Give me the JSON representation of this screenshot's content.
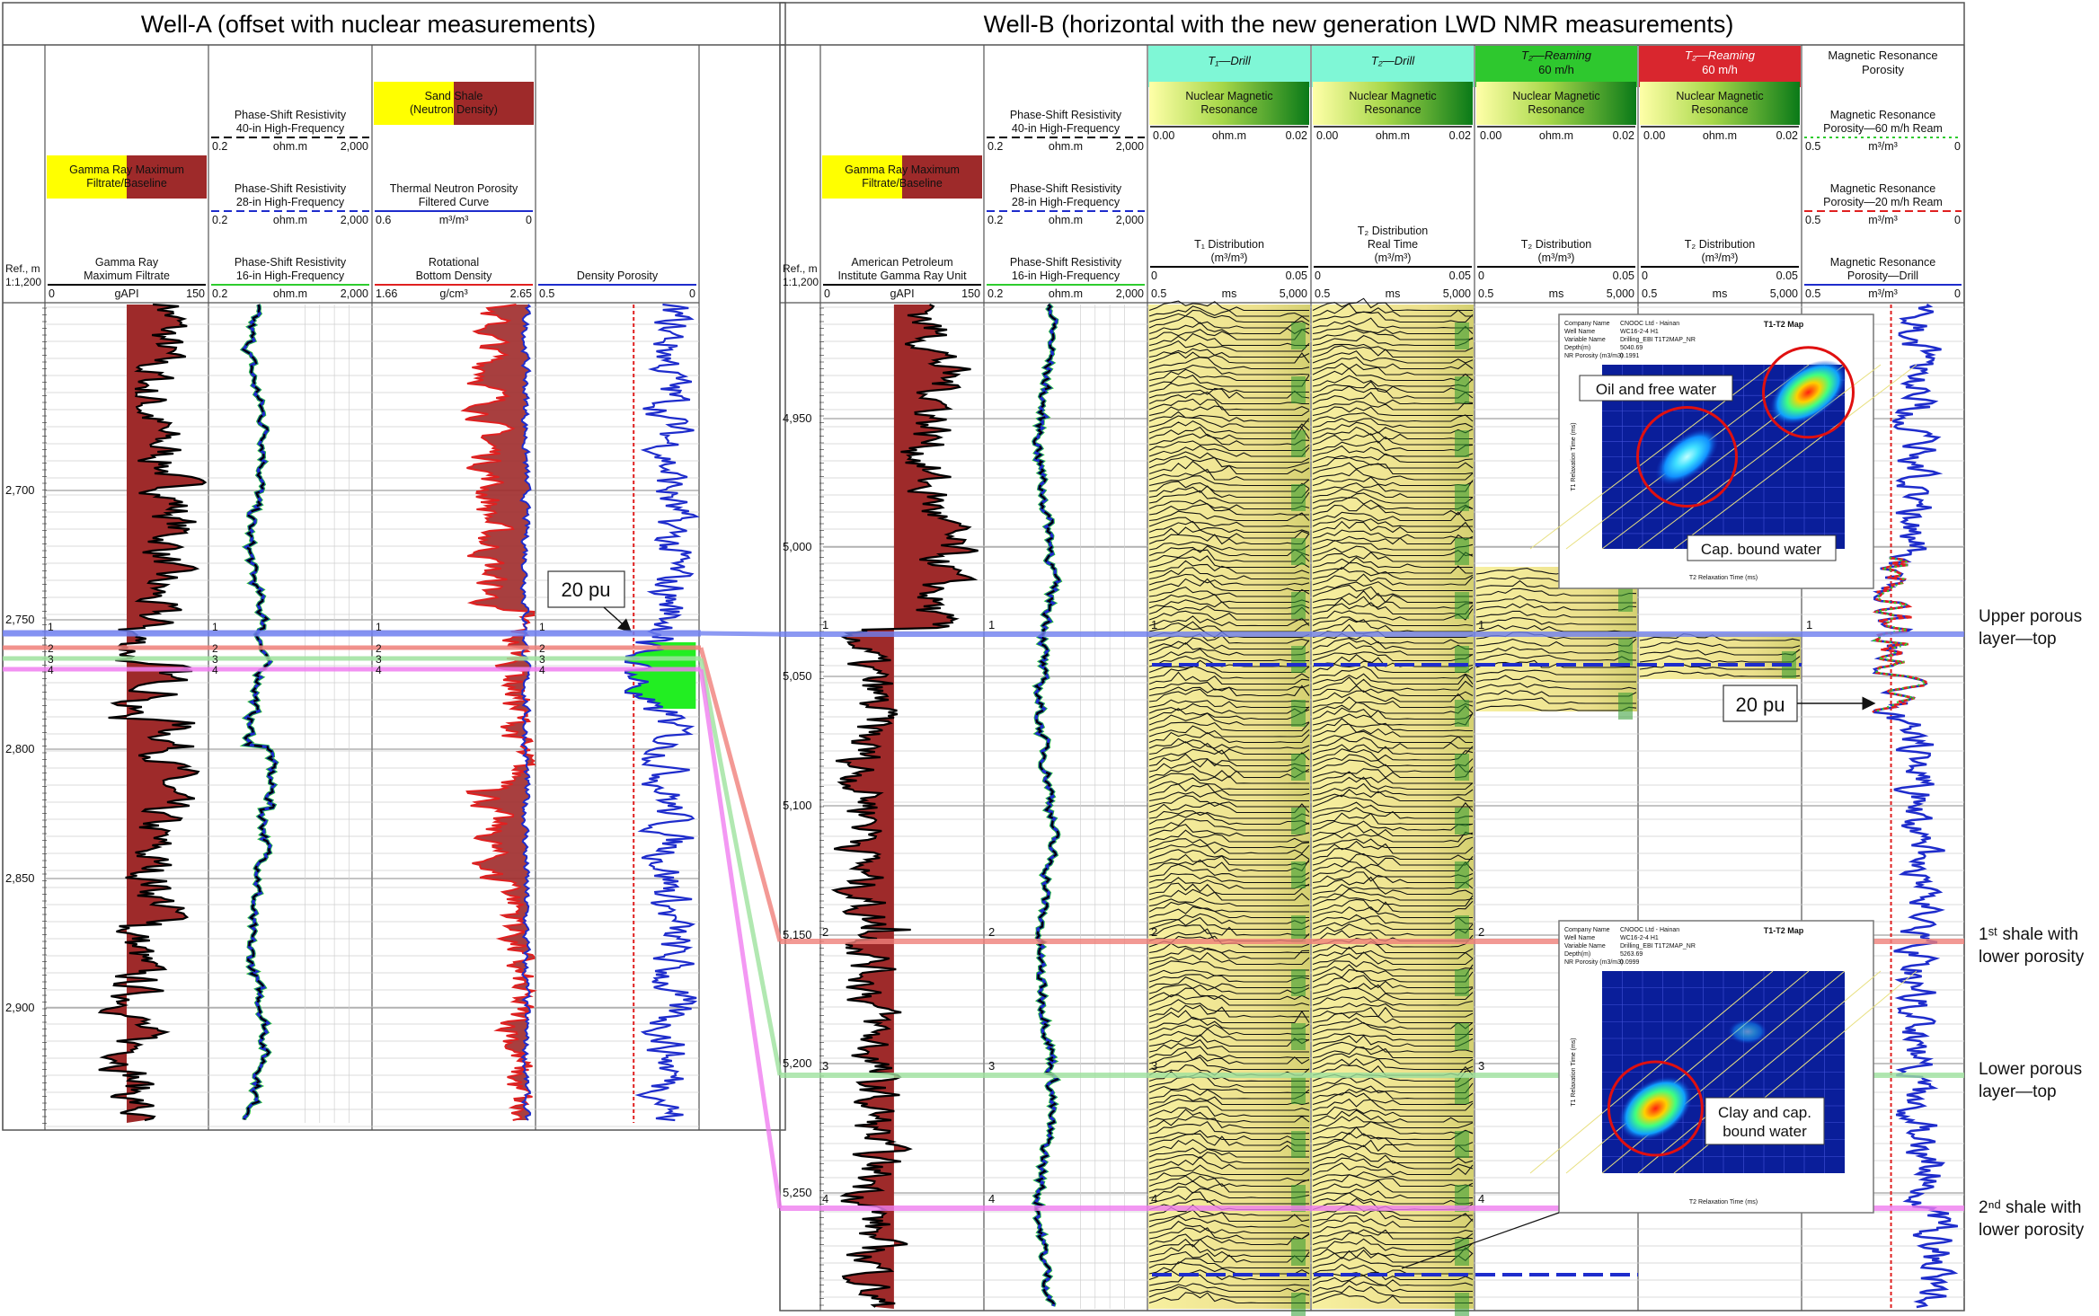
{
  "wellA": {
    "title": "Well-A (offset with nuclear measurements)",
    "depth_header": [
      "Ref., m",
      "1:1,200"
    ],
    "depth_ticks": [
      "2,700",
      "2,750",
      "2,800",
      "2,850",
      "2,900"
    ],
    "tracks": [
      {
        "headers": [
          {
            "kind": "fill",
            "label": [
              "Gamma Ray Maximum",
              "Filtrate/Baseline"
            ],
            "fills": [
              "#ffff00",
              "#9e2a2a"
            ]
          },
          {
            "kind": "scale",
            "label": [
              "Gamma Ray",
              "Maximum Filtrate"
            ],
            "left": "0",
            "unit": "gAPI",
            "right": "150",
            "line": "#000000",
            "dash": "solid"
          }
        ]
      },
      {
        "headers": [
          {
            "kind": "scale",
            "label": [
              "Phase-Shift Resistivity",
              "40-in High-Frequency"
            ],
            "left": "0.2",
            "unit": "ohm.m",
            "right": "2,000",
            "line": "#000000",
            "dash": "dash"
          },
          {
            "kind": "scale",
            "label": [
              "Phase-Shift Resistivity",
              "28-in High-Frequency"
            ],
            "left": "0.2",
            "unit": "ohm.m",
            "right": "2,000",
            "line": "#1e2ccc",
            "dash": "dash"
          },
          {
            "kind": "scale",
            "label": [
              "Phase-Shift Resistivity",
              "16-in High-Frequency"
            ],
            "left": "0.2",
            "unit": "ohm.m",
            "right": "2,000",
            "line": "#2ecc2e",
            "dash": "solid"
          }
        ]
      },
      {
        "headers": [
          {
            "kind": "fill",
            "label": [
              "Sand Shale",
              "(Neutron Density)"
            ],
            "fills": [
              "#ffff00",
              "#9e2a2a"
            ]
          },
          {
            "kind": "scale",
            "label": [
              "Thermal Neutron Porosity",
              "Filtered Curve"
            ],
            "left": "0.6",
            "unit": "m³/m³",
            "right": "0",
            "line": "#1e2ccc",
            "dash": "solid"
          },
          {
            "kind": "scale",
            "label": [
              "Rotational",
              "Bottom Density"
            ],
            "left": "1.66",
            "unit": "g/cm³",
            "right": "2.65",
            "line": "#e02020",
            "dash": "solid"
          }
        ]
      },
      {
        "headers": [
          {
            "kind": "scale",
            "label": [
              "Density Porosity"
            ],
            "left": "0.5",
            "unit": "",
            "right": "0",
            "line": "#1e2ccc",
            "dash": "solid"
          }
        ]
      }
    ],
    "annotation": "20 pu"
  },
  "wellB": {
    "title": "Well-B (horizontal with the new generation LWD NMR measurements)",
    "depth_header": [
      "Ref., m",
      "1:1,200"
    ],
    "depth_ticks": [
      "4,950",
      "5,000",
      "5,050",
      "5,100",
      "5,150",
      "5,200",
      "5,250"
    ],
    "tracks": [
      {
        "headers": [
          {
            "kind": "fill",
            "label": [
              "Gamma Ray Maximum",
              "Filtrate/Baseline"
            ],
            "fills": [
              "#ffff00",
              "#9e2a2a"
            ]
          },
          {
            "kind": "scale",
            "label": [
              "American Petroleum",
              "Institute Gamma Ray Unit"
            ],
            "left": "0",
            "unit": "gAPI",
            "right": "150",
            "line": "#000000",
            "dash": "solid"
          }
        ]
      },
      {
        "headers": [
          {
            "kind": "scale",
            "label": [
              "Phase-Shift Resistivity",
              "40-in High-Frequency"
            ],
            "left": "0.2",
            "unit": "ohm.m",
            "right": "2,000",
            "line": "#000000",
            "dash": "dash"
          },
          {
            "kind": "scale",
            "label": [
              "Phase-Shift Resistivity",
              "28-in High-Frequency"
            ],
            "left": "0.2",
            "unit": "ohm.m",
            "right": "2,000",
            "line": "#1e2ccc",
            "dash": "dash"
          },
          {
            "kind": "scale",
            "label": [
              "Phase-Shift Resistivity",
              "16-in High-Frequency"
            ],
            "left": "0.2",
            "unit": "ohm.m",
            "right": "2,000",
            "line": "#2ecc2e",
            "dash": "solid"
          }
        ]
      },
      {
        "title": "T₁—Drill",
        "title_bg": "#7ff7d6",
        "headers": [
          {
            "kind": "nmr",
            "label": [
              "Nuclear Magnetic",
              "Resonance"
            ],
            "left": "0.00",
            "unit": "ohm.m",
            "right": "0.02"
          },
          {
            "kind": "scale",
            "label": [
              "T₁ Distribution",
              "(m³/m³)"
            ],
            "left": "0",
            "unit": "",
            "right": "0.05",
            "line": "#000000",
            "dash": "solid"
          },
          {
            "kind": "axis",
            "left": "0.5",
            "unit": "ms",
            "right": "5,000"
          }
        ]
      },
      {
        "title": "T₂—Drill",
        "title_bg": "#7ff7d6",
        "headers": [
          {
            "kind": "nmr",
            "label": [
              "Nuclear Magnetic",
              "Resonance"
            ],
            "left": "0.00",
            "unit": "ohm.m",
            "right": "0.02"
          },
          {
            "kind": "scale",
            "label": [
              "T₂ Distribution",
              "Real Time",
              "(m³/m³)"
            ],
            "left": "0",
            "unit": "",
            "right": "0.05",
            "line": "#000000",
            "dash": "solid"
          },
          {
            "kind": "axis",
            "left": "0.5",
            "unit": "ms",
            "right": "5,000"
          }
        ]
      },
      {
        "title": "T₂—Reaming\n60 m/h",
        "title_bg": "#2ec82e",
        "headers": [
          {
            "kind": "nmr",
            "label": [
              "Nuclear Magnetic",
              "Resonance"
            ],
            "left": "0.00",
            "unit": "ohm.m",
            "right": "0.02"
          },
          {
            "kind": "scale",
            "label": [
              "T₂ Distribution",
              "(m³/m³)"
            ],
            "left": "0",
            "unit": "",
            "right": "0.05",
            "line": "#000000",
            "dash": "solid"
          },
          {
            "kind": "axis",
            "left": "0.5",
            "unit": "ms",
            "right": "5,000"
          }
        ]
      },
      {
        "title": "T₂—Reaming\n60 m/h",
        "title_bg": "#d9262e",
        "headers": [
          {
            "kind": "nmr",
            "label": [
              "Nuclear Magnetic",
              "Resonance"
            ],
            "left": "0.00",
            "unit": "ohm.m",
            "right": "0.02"
          },
          {
            "kind": "scale",
            "label": [
              "T₂ Distribution",
              "(m³/m³)"
            ],
            "left": "0",
            "unit": "",
            "right": "0.05",
            "line": "#000000",
            "dash": "solid"
          },
          {
            "kind": "axis",
            "left": "0.5",
            "unit": "ms",
            "right": "5,000"
          }
        ]
      },
      {
        "title": "Magnetic Resonance\nPorosity",
        "title_bg": "#ffffff",
        "headers": [
          {
            "kind": "scale",
            "label": [
              "Magnetic Resonance",
              "Porosity—60 m/h Ream"
            ],
            "left": "0.5",
            "unit": "m³/m³",
            "right": "0",
            "line": "#2ecc2e",
            "dash": "dot"
          },
          {
            "kind": "scale",
            "label": [
              "Magnetic Resonance",
              "Porosity—20 m/h Ream"
            ],
            "left": "0.5",
            "unit": "m³/m³",
            "right": "0",
            "line": "#e02020",
            "dash": "dash"
          },
          {
            "kind": "scale",
            "label": [
              "Magnetic Resonance",
              "Porosity—Drill"
            ],
            "left": "0.5",
            "unit": "m³/m³",
            "right": "0",
            "line": "#1e2ccc",
            "dash": "solid"
          }
        ]
      }
    ],
    "annotation": "20 pu"
  },
  "markers": [
    {
      "id": "1",
      "color": "#6f7ff0"
    },
    {
      "id": "2",
      "color": "#f0807a"
    },
    {
      "id": "3",
      "color": "#9ee29e"
    },
    {
      "id": "4",
      "color": "#f07ef0"
    }
  ],
  "right_labels": [
    [
      "Upper porous",
      "layer—top"
    ],
    [
      "1ˢᵗ shale with",
      "lower porosity"
    ],
    [
      "Lower porous",
      "layer—top"
    ],
    [
      "2ⁿᵈ shale with",
      "lower porosity"
    ]
  ],
  "insets": [
    {
      "map_title": "T1-T2 Map",
      "meta": [
        [
          "Company Name",
          "CNOOC Ltd - Hainan"
        ],
        [
          "Well Name",
          "WC16-2-4 H1"
        ],
        [
          "Variable Name",
          "Drilling_EBI T1T2MAP_NR"
        ],
        [
          "Depth(m)",
          "5040.69"
        ],
        [
          "NR Porosity (m3/m3)",
          "0.1991"
        ]
      ],
      "xlabel": "T2 Relaxation Time (ms)",
      "ylabel": "T1 Relaxation Time (ms)",
      "callouts": [
        "Oil and free water",
        "Cap. bound water"
      ]
    },
    {
      "map_title": "T1-T2 Map",
      "meta": [
        [
          "Company Name",
          "CNOOC Ltd - Hainan"
        ],
        [
          "Well Name",
          "WC16-2-4 H1"
        ],
        [
          "Variable Name",
          "Drilling_EBI T1T2MAP_NR"
        ],
        [
          "Depth(m)",
          "5263.69"
        ],
        [
          "NR Porosity (m3/m3)",
          "0.0999"
        ]
      ],
      "xlabel": "T2 Relaxation Time (ms)",
      "ylabel": "T1 Relaxation Time (ms)",
      "callouts": [
        "Clay and cap.",
        "bound water"
      ]
    }
  ],
  "colors": {
    "gr_fill": "#9e2a2a",
    "sand": "#ffff00",
    "blue": "#1e2ccc",
    "red": "#e02020",
    "green": "#2ecc2e",
    "grid": "#b8b8b8"
  }
}
